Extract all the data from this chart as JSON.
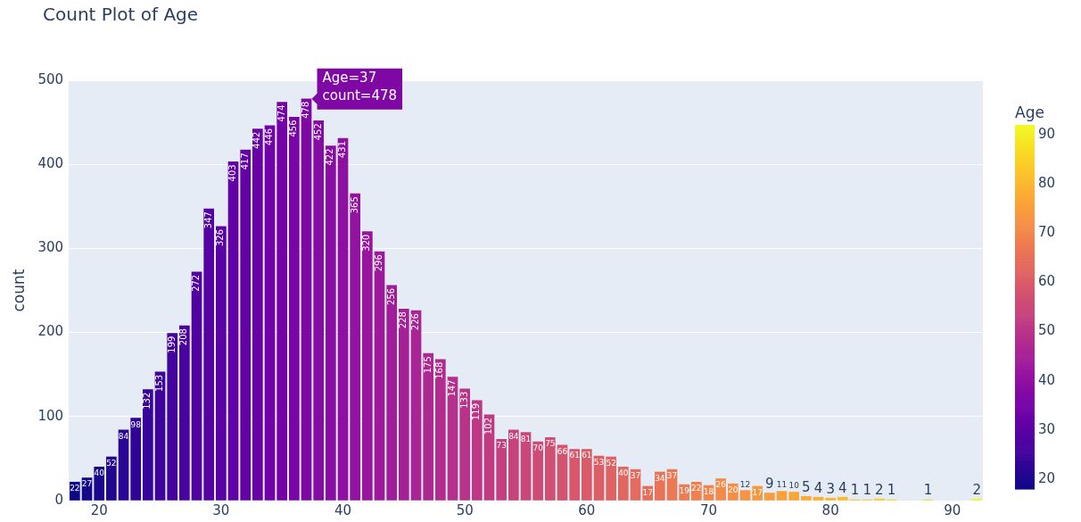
{
  "chart_data": {
    "type": "bar",
    "title": "Count Plot of Age",
    "xlabel": null,
    "ylabel": "count",
    "clabel": "Age",
    "x": [
      18,
      19,
      20,
      21,
      22,
      23,
      24,
      25,
      26,
      27,
      28,
      29,
      30,
      31,
      32,
      33,
      34,
      35,
      36,
      37,
      38,
      39,
      40,
      41,
      42,
      43,
      44,
      45,
      46,
      47,
      48,
      49,
      50,
      51,
      52,
      53,
      54,
      55,
      56,
      57,
      58,
      59,
      60,
      61,
      62,
      63,
      64,
      65,
      66,
      67,
      68,
      69,
      70,
      71,
      72,
      73,
      74,
      75,
      76,
      77,
      78,
      79,
      80,
      81,
      82,
      83,
      84,
      85,
      88,
      92
    ],
    "values": [
      22,
      27,
      40,
      52,
      84,
      98,
      132,
      153,
      199,
      208,
      272,
      347,
      326,
      403,
      417,
      442,
      446,
      474,
      456,
      478,
      452,
      422,
      431,
      365,
      320,
      296,
      256,
      228,
      226,
      175,
      168,
      147,
      133,
      119,
      102,
      73,
      84,
      81,
      70,
      75,
      66,
      61,
      61,
      53,
      52,
      40,
      37,
      17,
      34,
      37,
      19,
      22,
      18,
      26,
      20,
      12,
      17,
      9,
      11,
      10,
      5,
      4,
      3,
      4,
      1,
      1,
      2,
      1,
      1,
      2
    ],
    "cvalues": [
      18,
      19,
      20,
      21,
      22,
      23,
      24,
      25,
      26,
      27,
      28,
      29,
      30,
      31,
      32,
      33,
      34,
      35,
      36,
      37,
      38,
      39,
      40,
      41,
      42,
      43,
      44,
      45,
      46,
      47,
      48,
      49,
      50,
      51,
      52,
      53,
      54,
      55,
      56,
      57,
      58,
      59,
      60,
      61,
      62,
      63,
      64,
      65,
      66,
      67,
      68,
      69,
      70,
      71,
      72,
      73,
      74,
      75,
      76,
      77,
      78,
      79,
      80,
      81,
      82,
      83,
      84,
      85,
      88,
      92
    ],
    "clim": [
      18,
      92
    ],
    "cticks": [
      20,
      30,
      40,
      50,
      60,
      70,
      80,
      90
    ],
    "xlim": [
      17.5,
      92.5
    ],
    "xticks": [
      20,
      30,
      40,
      50,
      60,
      70,
      80,
      90
    ],
    "ylim": [
      0,
      500
    ],
    "yticks": [
      0,
      100,
      200,
      300,
      400,
      500
    ],
    "grid": "y",
    "legend": false,
    "data_labels": true,
    "annotations": [
      {
        "text": "Age=37\ncount=478",
        "x": 37,
        "y": 478
      }
    ]
  }
}
